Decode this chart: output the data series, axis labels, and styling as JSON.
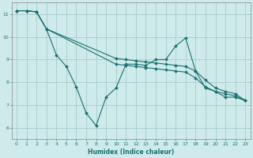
{
  "xlabel": "Humidex (Indice chaleur)",
  "bg_color": "#ceeaea",
  "grid_color": "#a8cccc",
  "line_color": "#1a7070",
  "spine_color": "#888888",
  "xlim": [
    -0.5,
    23.5
  ],
  "ylim": [
    5.5,
    11.5
  ],
  "xticks": [
    0,
    1,
    2,
    3,
    4,
    5,
    6,
    7,
    8,
    9,
    10,
    11,
    12,
    13,
    14,
    15,
    16,
    17,
    18,
    19,
    20,
    21,
    22,
    23
  ],
  "yticks": [
    6,
    7,
    8,
    9,
    10,
    11
  ],
  "line1_x": [
    0,
    1,
    2,
    3,
    4,
    5,
    6,
    7,
    8,
    9,
    10,
    11,
    12,
    13,
    14,
    15,
    16,
    17,
    18,
    19,
    20,
    21,
    22,
    23
  ],
  "line1_y": [
    11.15,
    11.15,
    11.1,
    10.35,
    9.2,
    8.7,
    7.8,
    6.65,
    6.1,
    7.35,
    7.75,
    8.8,
    8.8,
    8.75,
    9.0,
    9.0,
    9.6,
    9.95,
    8.5,
    7.75,
    7.6,
    7.35,
    7.35,
    7.2
  ],
  "line2_x": [
    0,
    1,
    2,
    3,
    10,
    11,
    12,
    13,
    14,
    15,
    16,
    17,
    18,
    19,
    20,
    21,
    22,
    23
  ],
  "line2_y": [
    11.15,
    11.15,
    11.1,
    10.35,
    9.05,
    9.0,
    8.95,
    8.9,
    8.85,
    8.8,
    8.75,
    8.7,
    8.5,
    8.1,
    7.75,
    7.6,
    7.5,
    7.2
  ],
  "line3_x": [
    0,
    1,
    2,
    3,
    10,
    11,
    12,
    13,
    14,
    15,
    16,
    17,
    18,
    19,
    20,
    21,
    22,
    23
  ],
  "line3_y": [
    11.15,
    11.15,
    11.1,
    10.35,
    8.8,
    8.75,
    8.7,
    8.65,
    8.6,
    8.55,
    8.5,
    8.45,
    8.2,
    7.8,
    7.6,
    7.5,
    7.4,
    7.2
  ],
  "tick_labelsize": 4.5,
  "xlabel_fontsize": 5.5,
  "lw": 0.8,
  "ms": 2.0
}
